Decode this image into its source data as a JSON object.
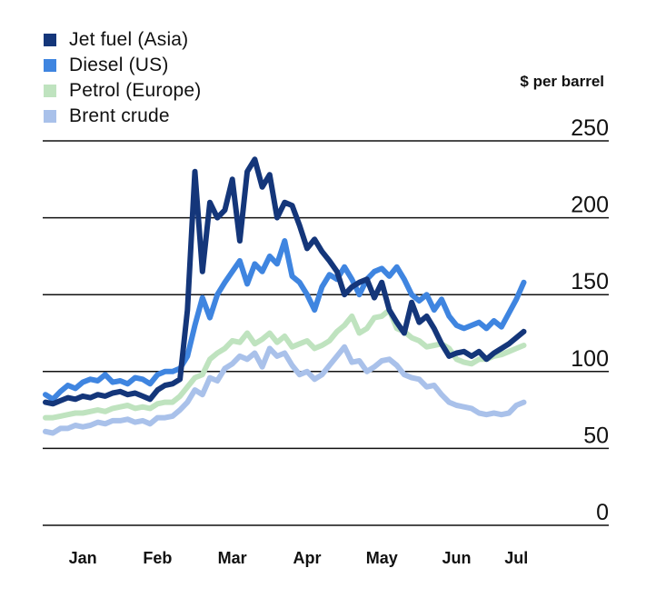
{
  "chart_data": {
    "type": "line",
    "unit_label": "$ per barrel",
    "ylim": [
      0,
      250
    ],
    "y_ticks": [
      0,
      50,
      100,
      150,
      200,
      250
    ],
    "grid": true,
    "legend_placement": "top-left",
    "x_range": [
      0,
      6.6
    ],
    "x_ticks": [
      {
        "label": "Jan",
        "x": 0.5
      },
      {
        "label": "Feb",
        "x": 1.5
      },
      {
        "label": "Mar",
        "x": 2.5
      },
      {
        "label": "Apr",
        "x": 3.5
      },
      {
        "label": "May",
        "x": 4.5
      },
      {
        "label": "Jun",
        "x": 5.5
      },
      {
        "label": "Jul",
        "x": 6.3
      }
    ],
    "series": [
      {
        "name": "Brent crude",
        "color": "#a9c1ea",
        "points": [
          [
            0.0,
            61
          ],
          [
            0.1,
            60
          ],
          [
            0.2,
            63
          ],
          [
            0.3,
            63
          ],
          [
            0.4,
            65
          ],
          [
            0.5,
            64
          ],
          [
            0.6,
            65
          ],
          [
            0.7,
            67
          ],
          [
            0.8,
            66
          ],
          [
            0.9,
            68
          ],
          [
            1.0,
            68
          ],
          [
            1.1,
            69
          ],
          [
            1.2,
            67
          ],
          [
            1.3,
            68
          ],
          [
            1.4,
            66
          ],
          [
            1.5,
            70
          ],
          [
            1.6,
            70
          ],
          [
            1.7,
            71
          ],
          [
            1.8,
            75
          ],
          [
            1.9,
            80
          ],
          [
            2.0,
            88
          ],
          [
            2.1,
            85
          ],
          [
            2.2,
            96
          ],
          [
            2.3,
            94
          ],
          [
            2.4,
            102
          ],
          [
            2.5,
            105
          ],
          [
            2.6,
            110
          ],
          [
            2.7,
            108
          ],
          [
            2.8,
            112
          ],
          [
            2.9,
            103
          ],
          [
            3.0,
            115
          ],
          [
            3.1,
            110
          ],
          [
            3.2,
            112
          ],
          [
            3.3,
            104
          ],
          [
            3.4,
            98
          ],
          [
            3.5,
            100
          ],
          [
            3.6,
            95
          ],
          [
            3.7,
            98
          ],
          [
            3.8,
            104
          ],
          [
            3.9,
            110
          ],
          [
            4.0,
            116
          ],
          [
            4.1,
            106
          ],
          [
            4.2,
            107
          ],
          [
            4.3,
            100
          ],
          [
            4.4,
            103
          ],
          [
            4.5,
            107
          ],
          [
            4.6,
            108
          ],
          [
            4.7,
            104
          ],
          [
            4.8,
            98
          ],
          [
            4.9,
            96
          ],
          [
            5.0,
            95
          ],
          [
            5.1,
            90
          ],
          [
            5.2,
            91
          ],
          [
            5.3,
            85
          ],
          [
            5.4,
            80
          ],
          [
            5.5,
            78
          ],
          [
            5.6,
            77
          ],
          [
            5.7,
            76
          ],
          [
            5.8,
            73
          ],
          [
            5.9,
            72
          ],
          [
            6.0,
            73
          ],
          [
            6.1,
            72
          ],
          [
            6.2,
            73
          ],
          [
            6.3,
            78
          ],
          [
            6.4,
            80
          ]
        ]
      },
      {
        "name": "Petrol (Europe)",
        "color": "#bfe3bf",
        "points": [
          [
            0.0,
            70
          ],
          [
            0.1,
            70
          ],
          [
            0.2,
            71
          ],
          [
            0.3,
            72
          ],
          [
            0.4,
            73
          ],
          [
            0.5,
            73
          ],
          [
            0.6,
            74
          ],
          [
            0.7,
            75
          ],
          [
            0.8,
            74
          ],
          [
            0.9,
            76
          ],
          [
            1.0,
            77
          ],
          [
            1.1,
            78
          ],
          [
            1.2,
            76
          ],
          [
            1.3,
            77
          ],
          [
            1.4,
            76
          ],
          [
            1.5,
            79
          ],
          [
            1.6,
            80
          ],
          [
            1.7,
            80
          ],
          [
            1.8,
            84
          ],
          [
            1.9,
            90
          ],
          [
            2.0,
            96
          ],
          [
            2.1,
            98
          ],
          [
            2.2,
            108
          ],
          [
            2.3,
            112
          ],
          [
            2.4,
            115
          ],
          [
            2.5,
            120
          ],
          [
            2.6,
            119
          ],
          [
            2.7,
            125
          ],
          [
            2.8,
            118
          ],
          [
            2.9,
            121
          ],
          [
            3.0,
            125
          ],
          [
            3.1,
            119
          ],
          [
            3.2,
            123
          ],
          [
            3.3,
            116
          ],
          [
            3.4,
            118
          ],
          [
            3.5,
            120
          ],
          [
            3.6,
            115
          ],
          [
            3.7,
            117
          ],
          [
            3.8,
            120
          ],
          [
            3.9,
            126
          ],
          [
            4.0,
            130
          ],
          [
            4.1,
            136
          ],
          [
            4.2,
            125
          ],
          [
            4.3,
            128
          ],
          [
            4.4,
            135
          ],
          [
            4.5,
            136
          ],
          [
            4.6,
            140
          ],
          [
            4.7,
            128
          ],
          [
            4.8,
            126
          ],
          [
            4.9,
            122
          ],
          [
            5.0,
            120
          ],
          [
            5.1,
            116
          ],
          [
            5.2,
            117
          ],
          [
            5.3,
            118
          ],
          [
            5.4,
            115
          ],
          [
            5.5,
            108
          ],
          [
            5.6,
            106
          ],
          [
            5.7,
            105
          ],
          [
            5.8,
            108
          ],
          [
            5.9,
            108
          ],
          [
            6.0,
            110
          ],
          [
            6.1,
            111
          ],
          [
            6.2,
            113
          ],
          [
            6.3,
            115
          ],
          [
            6.4,
            117
          ]
        ]
      },
      {
        "name": "Diesel (US)",
        "color": "#3f85e0",
        "points": [
          [
            0.0,
            85
          ],
          [
            0.1,
            82
          ],
          [
            0.2,
            87
          ],
          [
            0.3,
            91
          ],
          [
            0.4,
            89
          ],
          [
            0.5,
            93
          ],
          [
            0.6,
            95
          ],
          [
            0.7,
            94
          ],
          [
            0.8,
            98
          ],
          [
            0.9,
            93
          ],
          [
            1.0,
            94
          ],
          [
            1.1,
            92
          ],
          [
            1.2,
            96
          ],
          [
            1.3,
            95
          ],
          [
            1.4,
            92
          ],
          [
            1.5,
            98
          ],
          [
            1.6,
            100
          ],
          [
            1.7,
            100
          ],
          [
            1.8,
            102
          ],
          [
            1.9,
            110
          ],
          [
            2.0,
            130
          ],
          [
            2.1,
            148
          ],
          [
            2.2,
            135
          ],
          [
            2.3,
            150
          ],
          [
            2.4,
            158
          ],
          [
            2.5,
            165
          ],
          [
            2.6,
            172
          ],
          [
            2.7,
            157
          ],
          [
            2.8,
            170
          ],
          [
            2.9,
            165
          ],
          [
            3.0,
            175
          ],
          [
            3.1,
            170
          ],
          [
            3.2,
            185
          ],
          [
            3.3,
            162
          ],
          [
            3.4,
            158
          ],
          [
            3.5,
            150
          ],
          [
            3.6,
            140
          ],
          [
            3.7,
            155
          ],
          [
            3.8,
            163
          ],
          [
            3.9,
            160
          ],
          [
            4.0,
            168
          ],
          [
            4.1,
            160
          ],
          [
            4.2,
            150
          ],
          [
            4.3,
            160
          ],
          [
            4.4,
            165
          ],
          [
            4.5,
            167
          ],
          [
            4.6,
            162
          ],
          [
            4.7,
            168
          ],
          [
            4.8,
            160
          ],
          [
            4.9,
            150
          ],
          [
            5.0,
            146
          ],
          [
            5.1,
            150
          ],
          [
            5.2,
            140
          ],
          [
            5.3,
            147
          ],
          [
            5.4,
            136
          ],
          [
            5.5,
            130
          ],
          [
            5.6,
            128
          ],
          [
            5.7,
            130
          ],
          [
            5.8,
            132
          ],
          [
            5.9,
            128
          ],
          [
            6.0,
            133
          ],
          [
            6.1,
            129
          ],
          [
            6.2,
            138
          ],
          [
            6.3,
            147
          ],
          [
            6.4,
            158
          ]
        ]
      },
      {
        "name": "Jet fuel (Asia)",
        "color": "#14367a",
        "points": [
          [
            0.0,
            80
          ],
          [
            0.1,
            79
          ],
          [
            0.2,
            81
          ],
          [
            0.3,
            83
          ],
          [
            0.4,
            82
          ],
          [
            0.5,
            84
          ],
          [
            0.6,
            83
          ],
          [
            0.7,
            85
          ],
          [
            0.8,
            84
          ],
          [
            0.9,
            86
          ],
          [
            1.0,
            87
          ],
          [
            1.1,
            85
          ],
          [
            1.2,
            86
          ],
          [
            1.3,
            84
          ],
          [
            1.4,
            82
          ],
          [
            1.5,
            88
          ],
          [
            1.6,
            91
          ],
          [
            1.7,
            92
          ],
          [
            1.8,
            95
          ],
          [
            1.9,
            140
          ],
          [
            2.0,
            230
          ],
          [
            2.1,
            165
          ],
          [
            2.2,
            210
          ],
          [
            2.3,
            200
          ],
          [
            2.4,
            205
          ],
          [
            2.5,
            225
          ],
          [
            2.6,
            185
          ],
          [
            2.7,
            230
          ],
          [
            2.8,
            238
          ],
          [
            2.9,
            220
          ],
          [
            3.0,
            228
          ],
          [
            3.1,
            200
          ],
          [
            3.2,
            210
          ],
          [
            3.3,
            208
          ],
          [
            3.4,
            195
          ],
          [
            3.5,
            180
          ],
          [
            3.6,
            186
          ],
          [
            3.7,
            178
          ],
          [
            3.8,
            172
          ],
          [
            3.9,
            165
          ],
          [
            4.0,
            150
          ],
          [
            4.1,
            155
          ],
          [
            4.2,
            158
          ],
          [
            4.3,
            160
          ],
          [
            4.4,
            148
          ],
          [
            4.5,
            158
          ],
          [
            4.6,
            140
          ],
          [
            4.7,
            132
          ],
          [
            4.8,
            125
          ],
          [
            4.9,
            145
          ],
          [
            5.0,
            132
          ],
          [
            5.1,
            136
          ],
          [
            5.2,
            128
          ],
          [
            5.3,
            118
          ],
          [
            5.4,
            110
          ],
          [
            5.5,
            112
          ],
          [
            5.6,
            113
          ],
          [
            5.7,
            110
          ],
          [
            5.8,
            113
          ],
          [
            5.9,
            108
          ],
          [
            6.0,
            112
          ],
          [
            6.1,
            115
          ],
          [
            6.2,
            118
          ],
          [
            6.3,
            122
          ],
          [
            6.4,
            126
          ]
        ]
      }
    ],
    "legend": [
      {
        "name": "Jet fuel (Asia)",
        "color": "#14367a"
      },
      {
        "name": "Diesel (US)",
        "color": "#3f85e0"
      },
      {
        "name": "Petrol (Europe)",
        "color": "#bfe3bf"
      },
      {
        "name": "Brent crude",
        "color": "#a9c1ea"
      }
    ]
  }
}
